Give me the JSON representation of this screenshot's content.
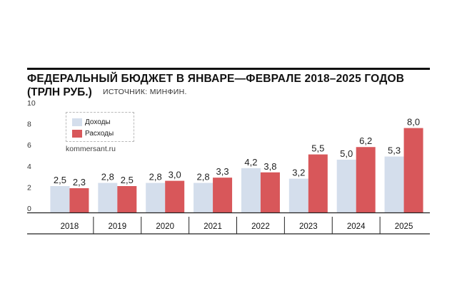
{
  "title_line1": "ФЕДЕРАЛЬНЫЙ БЮДЖЕТ В ЯНВАРЕ—ФЕВРАЛЕ 2018–2025 ГОДОВ",
  "title_line2": "(ТРЛН РУБ.)",
  "source": "ИСТОЧНИК: МИНФИН.",
  "site": "kommersant.ru",
  "colors": {
    "income": "#d4deec",
    "expense": "#d8575a"
  },
  "chart_data": {
    "type": "bar",
    "categories": [
      "2018",
      "2019",
      "2020",
      "2021",
      "2022",
      "2023",
      "2024",
      "2025"
    ],
    "series": [
      {
        "name": "Доходы",
        "values": [
          2.5,
          2.8,
          2.8,
          2.8,
          4.2,
          3.2,
          5.0,
          5.3
        ],
        "labels": [
          "2,5",
          "2,8",
          "2,8",
          "2,8",
          "4,2",
          "3,2",
          "5,0",
          "5,3"
        ]
      },
      {
        "name": "Расходы",
        "values": [
          2.3,
          2.5,
          3.0,
          3.3,
          3.8,
          5.5,
          6.2,
          8.0
        ],
        "labels": [
          "2,3",
          "2,5",
          "3,0",
          "3,3",
          "3,8",
          "5,5",
          "6,2",
          "8,0"
        ]
      }
    ],
    "y_ticks": [
      "0",
      "2",
      "4",
      "6",
      "8",
      "10"
    ],
    "ylim": [
      0,
      10
    ]
  }
}
